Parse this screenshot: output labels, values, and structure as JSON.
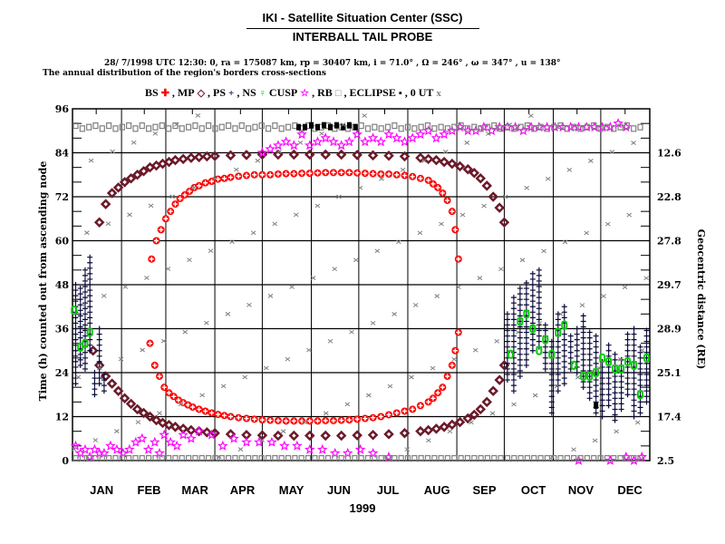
{
  "header": {
    "title": "IKI - Satellite Situation Center (SSC)",
    "subtitle": "INTERBALL TAIL PROBE",
    "orbit_info": "28/ 7/1998 UTC 12:30: 0, ra = 175087 km, rp =  30407 km, i = 71.0° , Ω = 246° , ω = 347° , u = 138°",
    "description": "The annual distribution of the region's borders cross-sections"
  },
  "legend": {
    "items": [
      {
        "label": "BS",
        "symbol": "✚",
        "color": "#ff0000"
      },
      {
        "label": ", MP",
        "symbol": "◇",
        "color": "#6b1a2a"
      },
      {
        "label": ", PS",
        "symbol": "+",
        "color": "#0a0a3a"
      },
      {
        "label": ", NS",
        "symbol": "♀",
        "color": "#00cc00"
      },
      {
        "label": " CUSP",
        "symbol": "☆",
        "color": "#ff00ff"
      },
      {
        "label": ", RB",
        "symbol": "□",
        "color": "#808080"
      },
      {
        "label": ", ECLIPSE",
        "symbol": "▪",
        "color": "#000000"
      },
      {
        "label": ", 0 UT",
        "symbol": "x",
        "color": "#808080"
      }
    ]
  },
  "chart_data": {
    "type": "scatter",
    "title": "The annual distribution of the region's borders cross-sections",
    "xlabel": "1999",
    "ylabel": "Time (h) counted out from ascending node",
    "y2label": "Geocentric distance (RE)",
    "xlim": [
      0,
      365
    ],
    "ylim": [
      0,
      96
    ],
    "grid": true,
    "legend_position": "top",
    "x_ticks": [
      {
        "label": "JAN",
        "day": 15
      },
      {
        "label": "FEB",
        "day": 45
      },
      {
        "label": "MAR",
        "day": 74
      },
      {
        "label": "APR",
        "day": 104
      },
      {
        "label": "MAY",
        "day": 135
      },
      {
        "label": "JUN",
        "day": 165
      },
      {
        "label": "JUL",
        "day": 196
      },
      {
        "label": "AUG",
        "day": 227
      },
      {
        "label": "SEP",
        "day": 257
      },
      {
        "label": "OCT",
        "day": 288
      },
      {
        "label": "NOV",
        "day": 318
      },
      {
        "label": "DEC",
        "day": 349
      }
    ],
    "month_boundaries": [
      0,
      31,
      59,
      90,
      120,
      151,
      181,
      212,
      243,
      273,
      304,
      334,
      365
    ],
    "y_ticks": [
      0,
      12,
      24,
      36,
      48,
      60,
      72,
      84,
      96
    ],
    "y2_ticks": [
      {
        "y": 0,
        "label": "2.5"
      },
      {
        "y": 12,
        "label": "17.4"
      },
      {
        "y": 24,
        "label": "25.1"
      },
      {
        "y": 36,
        "label": "28.9"
      },
      {
        "y": 48,
        "label": "29.7"
      },
      {
        "y": 60,
        "label": "27.8"
      },
      {
        "y": 72,
        "label": "22.8"
      },
      {
        "y": 84,
        "label": "12.6"
      }
    ],
    "series": [
      {
        "name": "BS",
        "color": "#ff0000",
        "marker": "circle-cross",
        "upper": {
          "x": [
            50,
            53,
            56,
            59,
            62,
            65,
            68,
            71,
            74,
            77,
            80,
            84,
            88,
            92,
            96,
            100,
            105,
            110,
            115,
            120,
            125,
            130,
            135,
            140,
            145,
            150,
            155,
            160,
            165,
            170,
            175,
            180,
            185,
            190,
            195,
            200,
            205,
            210,
            215,
            220,
            225,
            228,
            231,
            234,
            237,
            240,
            242,
            244
          ],
          "y": [
            55,
            60,
            63,
            66,
            68,
            70,
            71.5,
            72.5,
            73.5,
            74.5,
            75,
            75.8,
            76.2,
            76.8,
            77,
            77.3,
            77.6,
            77.8,
            78,
            78,
            78,
            78.2,
            78.3,
            78.3,
            78.4,
            78.4,
            78.5,
            78.6,
            78.6,
            78.6,
            78.6,
            78.5,
            78.4,
            78.3,
            78.2,
            78.2,
            78,
            77.8,
            77.5,
            77,
            76.5,
            75.5,
            74.5,
            73,
            71,
            68,
            63,
            55
          ]
        },
        "lower": {
          "x": [
            49,
            52,
            55,
            58,
            61,
            64,
            67,
            70,
            73,
            76,
            80,
            84,
            88,
            92,
            96,
            100,
            105,
            110,
            115,
            120,
            125,
            130,
            135,
            140,
            145,
            150,
            155,
            160,
            165,
            170,
            175,
            180,
            185,
            190,
            195,
            200,
            205,
            210,
            215,
            220,
            225,
            228,
            231,
            234,
            237,
            240,
            242,
            244
          ],
          "y": [
            32,
            26,
            23,
            20,
            18.5,
            17.5,
            16.5,
            15.8,
            15.2,
            14.6,
            14,
            13.5,
            13,
            12.6,
            12.3,
            12,
            11.7,
            11.5,
            11.3,
            11.1,
            11,
            10.9,
            10.8,
            10.8,
            10.8,
            10.8,
            10.8,
            10.9,
            10.9,
            11,
            11.1,
            11.3,
            11.5,
            11.7,
            12,
            12.5,
            13,
            13.5,
            14,
            15,
            16,
            17,
            18.5,
            20,
            23,
            26,
            30,
            35
          ]
        }
      },
      {
        "name": "MP",
        "color": "#6b1a2a",
        "marker": "diamond",
        "upper": {
          "x": [
            17,
            21,
            25,
            29,
            33,
            37,
            41,
            45,
            49,
            53,
            57,
            61,
            65,
            70,
            75,
            80,
            85,
            90,
            100,
            110,
            120,
            130,
            140,
            150,
            160,
            170,
            180,
            190,
            200,
            210,
            220,
            225,
            230,
            235,
            240,
            245,
            250,
            254,
            258,
            262,
            266,
            270,
            273
          ],
          "y": [
            65,
            70,
            73,
            74.5,
            76,
            77,
            78,
            79,
            80,
            80.5,
            81,
            81.5,
            82,
            82.3,
            82.6,
            82.8,
            83,
            83.1,
            83.3,
            83.4,
            83.5,
            83.5,
            83.5,
            83.5,
            83.5,
            83.5,
            83.4,
            83.3,
            83.2,
            83,
            82.6,
            82.3,
            82,
            81.5,
            81,
            80.3,
            79.5,
            78.5,
            77,
            75,
            72,
            69,
            65
          ]
        },
        "lower": {
          "x": [
            13,
            17,
            21,
            25,
            29,
            33,
            37,
            41,
            45,
            49,
            53,
            57,
            61,
            65,
            70,
            75,
            80,
            85,
            90,
            100,
            110,
            120,
            130,
            140,
            150,
            160,
            170,
            180,
            190,
            200,
            210,
            220,
            225,
            230,
            235,
            240,
            245,
            250,
            254,
            258,
            262,
            266,
            270,
            273
          ],
          "y": [
            30,
            26,
            23,
            21,
            19,
            17,
            15.5,
            14,
            13,
            12,
            11,
            10.3,
            9.7,
            9.2,
            8.7,
            8.3,
            8,
            7.7,
            7.5,
            7.2,
            7,
            6.9,
            6.8,
            6.8,
            6.8,
            6.8,
            6.8,
            6.9,
            7,
            7.2,
            7.5,
            8,
            8.3,
            8.7,
            9.2,
            9.8,
            10.5,
            11.5,
            12.5,
            14,
            16,
            19,
            22,
            26
          ]
        }
      },
      {
        "name": "PS",
        "color": "#0a0a3a",
        "marker": "plus",
        "columns": [
          {
            "x": 2,
            "ymin": 21,
            "ymax": 49
          },
          {
            "x": 5,
            "ymin": 26,
            "ymax": 48
          },
          {
            "x": 8,
            "ymin": 25,
            "ymax": 52
          },
          {
            "x": 11,
            "ymin": 30,
            "ymax": 56
          },
          {
            "x": 14,
            "ymin": 18,
            "ymax": 24
          },
          {
            "x": 17,
            "ymin": 21,
            "ymax": 37
          },
          {
            "x": 20,
            "ymin": 19,
            "ymax": 24
          },
          {
            "x": 275,
            "ymin": 22,
            "ymax": 40
          },
          {
            "x": 279,
            "ymin": 19,
            "ymax": 45
          },
          {
            "x": 283,
            "ymin": 23,
            "ymax": 47
          },
          {
            "x": 287,
            "ymin": 26,
            "ymax": 49
          },
          {
            "x": 291,
            "ymin": 30,
            "ymax": 51
          },
          {
            "x": 295,
            "ymin": 31,
            "ymax": 53
          },
          {
            "x": 299,
            "ymin": 25,
            "ymax": 38
          },
          {
            "x": 303,
            "ymin": 13,
            "ymax": 33
          },
          {
            "x": 307,
            "ymin": 19,
            "ymax": 41
          },
          {
            "x": 311,
            "ymin": 21,
            "ymax": 43
          },
          {
            "x": 315,
            "ymin": 25,
            "ymax": 35
          },
          {
            "x": 319,
            "ymin": 24,
            "ymax": 37
          },
          {
            "x": 323,
            "ymin": 20,
            "ymax": 40
          },
          {
            "x": 327,
            "ymin": 17,
            "ymax": 35
          },
          {
            "x": 331,
            "ymin": 13,
            "ymax": 34
          },
          {
            "x": 335,
            "ymin": 12,
            "ymax": 28
          },
          {
            "x": 339,
            "ymin": 15,
            "ymax": 32
          },
          {
            "x": 343,
            "ymin": 11,
            "ymax": 30
          },
          {
            "x": 347,
            "ymin": 14,
            "ymax": 28
          },
          {
            "x": 351,
            "ymin": 18,
            "ymax": 35
          },
          {
            "x": 355,
            "ymin": 12,
            "ymax": 36
          },
          {
            "x": 359,
            "ymin": 13,
            "ymax": 32
          },
          {
            "x": 363,
            "ymin": 16,
            "ymax": 36
          }
        ]
      },
      {
        "name": "NS",
        "color": "#00cc00",
        "marker": "female",
        "x": [
          1,
          5,
          8,
          11,
          277,
          283,
          287,
          291,
          295,
          299,
          303,
          307,
          311,
          317,
          323,
          327,
          331,
          335,
          339,
          343,
          347,
          351,
          355,
          359,
          363
        ],
        "y": [
          41,
          31,
          32,
          35,
          29,
          38,
          40,
          36,
          30,
          33,
          29,
          35,
          37,
          26,
          23,
          23,
          24,
          28,
          27,
          25,
          25,
          27,
          26,
          18,
          28
        ]
      },
      {
        "name": "CUSP",
        "color": "#ff00ff",
        "marker": "star",
        "upper": {
          "x": [
            120,
            125,
            130,
            135,
            140,
            145,
            150,
            155,
            160,
            165,
            170,
            175,
            180,
            185,
            190,
            195,
            200,
            205,
            210,
            215,
            220,
            225,
            230,
            235,
            240,
            245,
            250,
            255,
            260,
            265,
            270,
            275,
            280,
            285,
            290,
            295,
            300,
            305,
            310,
            315,
            320,
            325,
            330,
            335,
            340,
            345,
            350
          ],
          "y": [
            84,
            85,
            86,
            87,
            86,
            89,
            86,
            87,
            88,
            87,
            86,
            87,
            89,
            87,
            88,
            87,
            89,
            88,
            87,
            88,
            89,
            90,
            88,
            89,
            90,
            91,
            90,
            90,
            91,
            90,
            91,
            91,
            91,
            90,
            91,
            91,
            91,
            91,
            91,
            91,
            91,
            91,
            91,
            91,
            91,
            92,
            91
          ]
        },
        "lower": {
          "x": [
            2,
            5,
            8,
            11,
            14,
            17,
            20,
            24,
            28,
            32,
            36,
            40,
            44,
            48,
            52,
            55,
            58,
            62,
            66,
            70,
            75,
            80,
            88,
            95,
            102,
            110,
            118,
            126,
            134,
            142,
            150,
            158,
            166,
            174,
            182,
            190,
            200,
            320,
            340,
            350,
            355,
            360
          ],
          "y": [
            4,
            2,
            3,
            1,
            3,
            2,
            2,
            4,
            3,
            2,
            3,
            5,
            6,
            3,
            5,
            2,
            7,
            5,
            4,
            7,
            6,
            8,
            7,
            4,
            6,
            5,
            5,
            5,
            4,
            4,
            3,
            3,
            2,
            2,
            3,
            2,
            1,
            0,
            0,
            1,
            0,
            1
          ]
        }
      },
      {
        "name": "RB",
        "color": "#808080",
        "marker": "square",
        "upper_y": 91,
        "upper_x_range": [
          0,
          365
        ],
        "lower_y": 0,
        "lower_x_range": [
          0,
          365
        ]
      },
      {
        "name": "ECLIPSE",
        "color": "#000000",
        "marker": "small-square",
        "x": [
          143,
          147,
          151,
          155,
          159,
          163,
          167,
          171,
          175,
          179,
          331
        ],
        "y": [
          91,
          91,
          91.5,
          91,
          91.5,
          91,
          91.5,
          91,
          91.5,
          91,
          15
        ]
      },
      {
        "name": "0 UT",
        "color": "#808080",
        "marker": "x",
        "note": "one point per day, linear drift of ascending-node hour",
        "x_step": 2.7,
        "y_slope": 0.84
      }
    ]
  }
}
